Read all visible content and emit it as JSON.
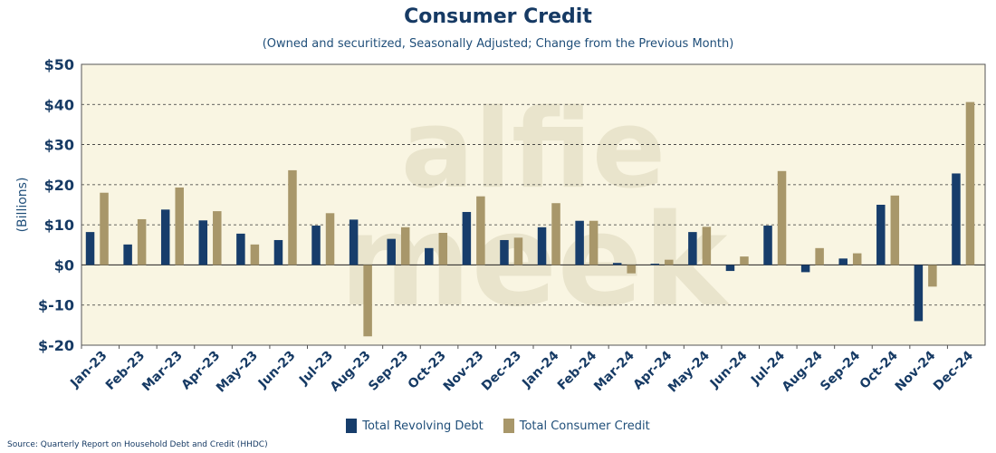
{
  "chart_data": {
    "type": "bar",
    "title": "Consumer Credit",
    "subtitle": "(Owned and securitized, Seasonally Adjusted; Change from the Previous Month)",
    "ylabel": "(Billions)",
    "xlabel": "",
    "ylim": [
      -20,
      50
    ],
    "yticks": [
      50,
      40,
      30,
      20,
      10,
      0,
      -10,
      -20
    ],
    "ytick_labels": [
      "$50",
      "$40",
      "$30",
      "$20",
      "$10",
      "$0",
      "$-10",
      "$-20"
    ],
    "grid": "horizontal dashed",
    "legend_position": "bottom",
    "categories": [
      "Jan-23",
      "Feb-23",
      "Mar-23",
      "Apr-23",
      "May-23",
      "Jun-23",
      "Jul-23",
      "Aug-23",
      "Sep-23",
      "Oct-23",
      "Nov-23",
      "Dec-23",
      "Jan-24",
      "Feb-24",
      "Mar-24",
      "Apr-24",
      "May-24",
      "Jun-24",
      "Jul-24",
      "Aug-24",
      "Sep-24",
      "Oct-24",
      "Nov-24",
      "Dec-24"
    ],
    "series": [
      {
        "name": "Total Revolving Debt",
        "color": "#173d6b",
        "values": [
          8.2,
          5.1,
          13.8,
          11.1,
          7.8,
          6.2,
          9.8,
          11.3,
          6.5,
          4.2,
          13.2,
          6.2,
          9.4,
          11.0,
          0.5,
          0.3,
          8.2,
          -1.5,
          9.8,
          -1.8,
          1.6,
          15.0,
          -14.0,
          22.8
        ]
      },
      {
        "name": "Total Consumer Credit",
        "color": "#a8976a",
        "values": [
          18.0,
          11.4,
          19.3,
          13.4,
          5.1,
          23.6,
          12.9,
          -17.8,
          9.4,
          8.0,
          17.1,
          6.8,
          15.4,
          11.0,
          -2.1,
          1.3,
          9.5,
          2.1,
          23.4,
          4.2,
          2.9,
          17.3,
          -5.4,
          40.6
        ]
      }
    ]
  },
  "watermark": "alfie meek",
  "source": "Source: Quarterly Report on Household Debt and Credit (HHDC)",
  "colors": {
    "plot_background": "#f9f5e2",
    "title": "#163a64",
    "axis_text": "#163a64",
    "grid": "#333333",
    "watermark": "#e9e4cc"
  }
}
